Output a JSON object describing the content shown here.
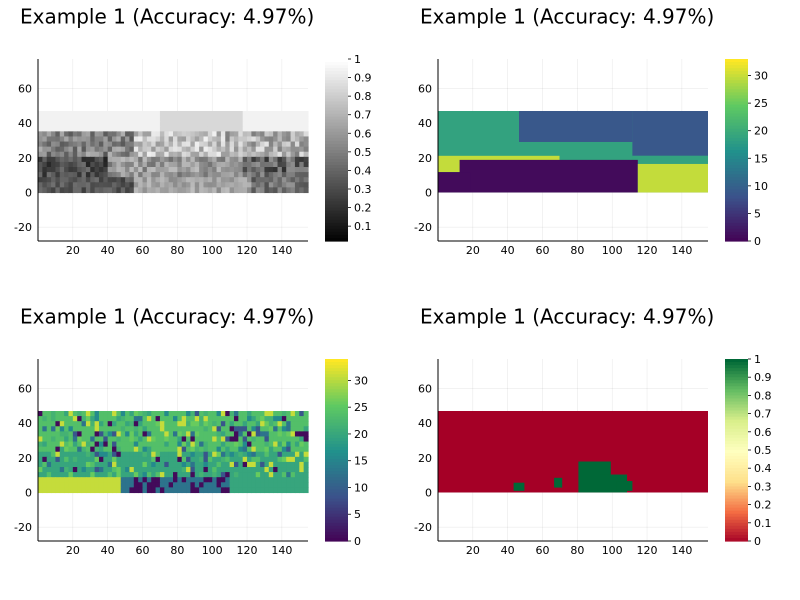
{
  "chart_data": [
    {
      "type": "heatmap",
      "title": "Example 1 (Accuracy: 4.97%)",
      "content": "grayscale street scene image",
      "xlim": [
        0,
        155
      ],
      "ylim": [
        -28,
        77
      ],
      "image_extent": {
        "x": [
          0,
          155
        ],
        "y": [
          0,
          47
        ]
      },
      "x_ticks": [
        20,
        40,
        60,
        80,
        100,
        120,
        140
      ],
      "y_ticks": [
        -20,
        0,
        20,
        40,
        60
      ],
      "colormap": "grays",
      "colorbar": {
        "min": 0.02,
        "max": 1.0,
        "ticks": [
          0.1,
          0.2,
          0.3,
          0.4,
          0.5,
          0.6,
          0.7,
          0.8,
          0.9,
          1.0
        ]
      },
      "grid": true
    },
    {
      "type": "heatmap",
      "title": "Example 1 (Accuracy: 4.97%)",
      "content": "ground truth segmentation labels",
      "xlim": [
        0,
        155
      ],
      "ylim": [
        -28,
        77
      ],
      "image_extent": {
        "x": [
          0,
          155
        ],
        "y": [
          0,
          47
        ]
      },
      "x_ticks": [
        20,
        40,
        60,
        80,
        100,
        120,
        140
      ],
      "y_ticks": [
        -20,
        0,
        20,
        40,
        60
      ],
      "colormap": "viridis",
      "colorbar": {
        "min": 0,
        "max": 33,
        "ticks": [
          0,
          5,
          10,
          15,
          20,
          25,
          30
        ]
      },
      "grid": true
    },
    {
      "type": "heatmap",
      "title": "Example 1 (Accuracy: 4.97%)",
      "content": "predicted segmentation labels",
      "xlim": [
        0,
        155
      ],
      "ylim": [
        -28,
        77
      ],
      "image_extent": {
        "x": [
          0,
          155
        ],
        "y": [
          0,
          47
        ]
      },
      "x_ticks": [
        20,
        40,
        60,
        80,
        100,
        120,
        140
      ],
      "y_ticks": [
        -20,
        0,
        20,
        40,
        60
      ],
      "colormap": "viridis",
      "colorbar": {
        "min": 0,
        "max": 34,
        "ticks": [
          0,
          5,
          10,
          15,
          20,
          25,
          30
        ]
      },
      "grid": true
    },
    {
      "type": "heatmap",
      "title": "Example 1 (Accuracy: 4.97%)",
      "content": "per-pixel correctness map (mostly incorrect)",
      "xlim": [
        0,
        155
      ],
      "ylim": [
        -28,
        77
      ],
      "image_extent": {
        "x": [
          0,
          155
        ],
        "y": [
          0,
          47
        ]
      },
      "x_ticks": [
        20,
        40,
        60,
        80,
        100,
        120,
        140
      ],
      "y_ticks": [
        -20,
        0,
        20,
        40,
        60
      ],
      "colormap": "RdYlGn",
      "colorbar": {
        "min": 0,
        "max": 1.0,
        "ticks": [
          0,
          0.1,
          0.2,
          0.3,
          0.4,
          0.5,
          0.6,
          0.7,
          0.8,
          0.9,
          1.0
        ]
      },
      "grid": true
    }
  ]
}
